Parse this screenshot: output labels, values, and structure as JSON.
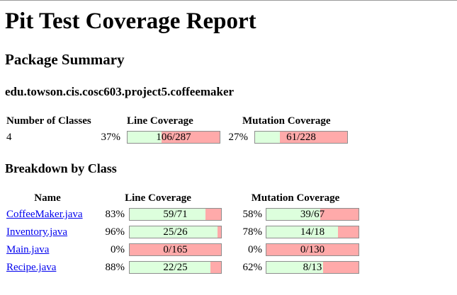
{
  "title": "Pit Test Coverage Report",
  "package_summary": {
    "heading": "Package Summary",
    "package_name": "edu.towson.cis.cosc603.project5.coffeemaker",
    "headers": {
      "num_classes": "Number of Classes",
      "line_coverage": "Line Coverage",
      "mutation_coverage": "Mutation Coverage"
    },
    "num_classes": "4",
    "line": {
      "pct": "37%",
      "label": "106/287",
      "covered": 106,
      "total": 287
    },
    "mutation": {
      "pct": "27%",
      "label": "61/228",
      "covered": 61,
      "total": 228
    }
  },
  "breakdown": {
    "heading": "Breakdown by Class",
    "headers": {
      "name": "Name",
      "line_coverage": "Line Coverage",
      "mutation_coverage": "Mutation Coverage"
    },
    "rows": [
      {
        "name": "CoffeeMaker.java",
        "line": {
          "pct": "83%",
          "label": "59/71",
          "covered": 59,
          "total": 71
        },
        "mutation": {
          "pct": "58%",
          "label": "39/67",
          "covered": 39,
          "total": 67
        }
      },
      {
        "name": "Inventory.java",
        "line": {
          "pct": "96%",
          "label": "25/26",
          "covered": 25,
          "total": 26
        },
        "mutation": {
          "pct": "78%",
          "label": "14/18",
          "covered": 14,
          "total": 18
        }
      },
      {
        "name": "Main.java",
        "line": {
          "pct": "0%",
          "label": "0/165",
          "covered": 0,
          "total": 165
        },
        "mutation": {
          "pct": "0%",
          "label": "0/130",
          "covered": 0,
          "total": 130
        }
      },
      {
        "name": "Recipe.java",
        "line": {
          "pct": "88%",
          "label": "22/25",
          "covered": 22,
          "total": 25
        },
        "mutation": {
          "pct": "62%",
          "label": "8/13",
          "covered": 8,
          "total": 13
        }
      }
    ]
  },
  "colors": {
    "covered": "#ddffdd",
    "uncovered": "#ffaaaa",
    "link": "#0000ee"
  }
}
